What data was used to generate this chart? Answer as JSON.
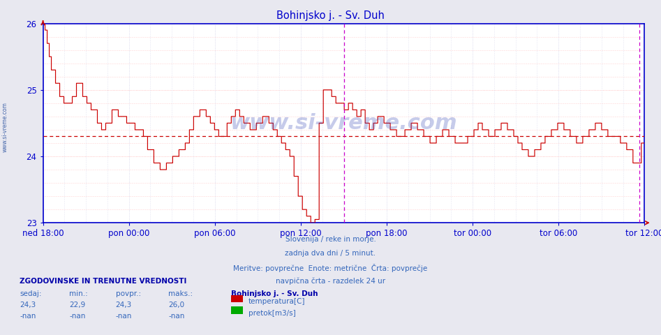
{
  "title": "Bohinjsko j. - Sv. Duh",
  "title_color": "#0000cc",
  "bg_color": "#e8e8f0",
  "plot_bg_color": "#ffffff",
  "grid_color": "#ffb0b0",
  "grid_color2": "#d0d0e8",
  "axis_color": "#0000cc",
  "line_color": "#cc0000",
  "avg_line_color": "#cc0000",
  "vline_color": "#cc00cc",
  "tick_color": "#0000cc",
  "ylim": [
    23,
    26
  ],
  "yticks": [
    23,
    24,
    25,
    26
  ],
  "avg_value": 24.3,
  "n_points": 576,
  "xlabel_labels": [
    "ned 18:00",
    "pon 00:00",
    "pon 06:00",
    "pon 12:00",
    "pon 18:00",
    "tor 00:00",
    "tor 06:00",
    "tor 12:00"
  ],
  "text_info_line1": "Slovenija / reke in morje.",
  "text_info_line2": "zadnja dva dni / 5 minut.",
  "text_info_line3": "Meritve: povprečne  Enote: metrične  Črta: povprečje",
  "text_info_line4": "navpična črta - razdelek 24 ur",
  "legend_title": "Bohinjsko j. - Sv. Duh",
  "legend_items": [
    "temperatura[C]",
    "pretok[m3/s]"
  ],
  "legend_colors": [
    "#cc0000",
    "#00aa00"
  ],
  "stat_labels": [
    "sedaj:",
    "min.:",
    "povpr.:",
    "maks.:"
  ],
  "stat_temp": [
    "24,3",
    "22,9",
    "24,3",
    "26,0"
  ],
  "stat_flow": [
    "-nan",
    "-nan",
    "-nan",
    "-nan"
  ],
  "section_title": "ZGODOVINSKE IN TRENUTNE VREDNOSTI",
  "watermark": "www.si-vreme.com",
  "sidebar_text": "www.si-vreme.com"
}
